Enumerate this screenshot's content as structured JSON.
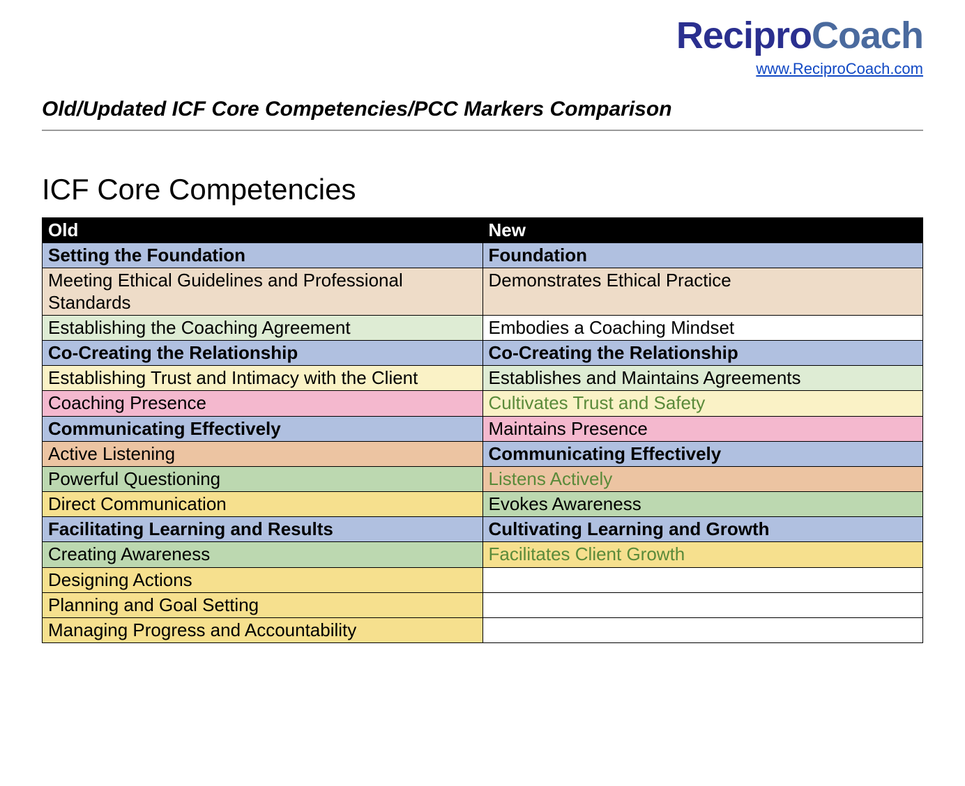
{
  "logo": {
    "part_a": "Recipro",
    "part_b": "Coach",
    "color_a": "#2a2f8f",
    "color_b": "#4a6a9e"
  },
  "site_link": {
    "text": "www.ReciproCoach.com",
    "color": "#1048c4"
  },
  "doc_title": "Old/Updated ICF Core Competencies/PCC Markers Comparison",
  "section_title": "ICF Core Competencies",
  "colors": {
    "header_bg": "#000000",
    "blue": "#b0c0e0",
    "tan": "#eedcc8",
    "white": "#ffffff",
    "yellow_light": "#faf2c6",
    "green_light": "#deecd4",
    "pink": "#f4b8ce",
    "orange": "#ecc4a2",
    "green_med": "#bcd8b0",
    "yellow_med": "#f6e08e",
    "text_green": "#5a8a3a",
    "text_black": "#000000",
    "text_grayish": "#3a3a3a"
  },
  "table": {
    "headers": {
      "old": "Old",
      "new": "New"
    },
    "rows": [
      {
        "old": {
          "text": "Setting the Foundation",
          "bg": "blue",
          "bold": true,
          "color": "text_black"
        },
        "new": {
          "text": "Foundation",
          "bg": "blue",
          "bold": true,
          "color": "text_black"
        }
      },
      {
        "old": {
          "text": "Meeting Ethical Guidelines and Professional Standards",
          "bg": "tan",
          "bold": false,
          "color": "text_black"
        },
        "new": {
          "text": "Demonstrates Ethical Practice",
          "bg": "tan",
          "bold": false,
          "color": "text_black"
        }
      },
      {
        "old": {
          "text": "Establishing the Coaching Agreement",
          "bg": "green_light",
          "bold": false,
          "color": "text_black"
        },
        "new": {
          "text": "Embodies a Coaching Mindset",
          "bg": "white",
          "bold": false,
          "color": "text_black"
        }
      },
      {
        "old": {
          "text": "Co-Creating the Relationship",
          "bg": "blue",
          "bold": true,
          "color": "text_black"
        },
        "new": {
          "text": "Co-Creating the Relationship",
          "bg": "blue",
          "bold": true,
          "color": "text_black"
        }
      },
      {
        "old": {
          "text": "Establishing Trust and Intimacy with the Client",
          "bg": "yellow_light",
          "bold": false,
          "color": "text_black"
        },
        "new": {
          "text": "Establishes and Maintains Agreements",
          "bg": "green_light",
          "bold": false,
          "color": "text_black"
        }
      },
      {
        "old": {
          "text": "Coaching Presence",
          "bg": "pink",
          "bold": false,
          "color": "text_black"
        },
        "new": {
          "text": "Cultivates Trust and Safety",
          "bg": "yellow_light",
          "bold": false,
          "color": "text_green"
        }
      },
      {
        "old": {
          "text": "Communicating Effectively",
          "bg": "blue",
          "bold": true,
          "color": "text_black"
        },
        "new": {
          "text": "Maintains Presence",
          "bg": "pink",
          "bold": false,
          "color": "text_black"
        }
      },
      {
        "old": {
          "text": "Active Listening",
          "bg": "orange",
          "bold": false,
          "color": "text_black"
        },
        "new": {
          "text": "Communicating Effectively",
          "bg": "blue",
          "bold": true,
          "color": "text_black"
        }
      },
      {
        "old": {
          "text": "Powerful Questioning",
          "bg": "green_med",
          "bold": false,
          "color": "text_black"
        },
        "new": {
          "text": "Listens Actively",
          "bg": "orange",
          "bold": false,
          "color": "text_green"
        }
      },
      {
        "old": {
          "text": "Direct Communication",
          "bg": "yellow_med",
          "bold": false,
          "color": "text_black"
        },
        "new": {
          "text": "Evokes Awareness",
          "bg": "green_med",
          "bold": false,
          "color": "text_black"
        }
      },
      {
        "old": {
          "text": "Facilitating Learning and Results",
          "bg": "blue",
          "bold": true,
          "color": "text_black"
        },
        "new": {
          "text": "Cultivating Learning and Growth",
          "bg": "blue",
          "bold": true,
          "color": "text_black"
        }
      },
      {
        "old": {
          "text": "Creating Awareness",
          "bg": "green_med",
          "bold": false,
          "color": "text_black"
        },
        "new": {
          "text": "Facilitates Client Growth",
          "bg": "yellow_med",
          "bold": false,
          "color": "text_green"
        }
      },
      {
        "old": {
          "text": "Designing Actions",
          "bg": "yellow_med",
          "bold": false,
          "color": "text_black"
        },
        "new": {
          "text": "",
          "bg": "white",
          "bold": false,
          "color": "text_black"
        }
      },
      {
        "old": {
          "text": "Planning and Goal Setting",
          "bg": "yellow_med",
          "bold": false,
          "color": "text_black"
        },
        "new": {
          "text": "",
          "bg": "white",
          "bold": false,
          "color": "text_black"
        }
      },
      {
        "old": {
          "text": "Managing Progress and Accountability",
          "bg": "yellow_med",
          "bold": false,
          "color": "text_black"
        },
        "new": {
          "text": "",
          "bg": "white",
          "bold": false,
          "color": "text_black"
        }
      }
    ]
  }
}
